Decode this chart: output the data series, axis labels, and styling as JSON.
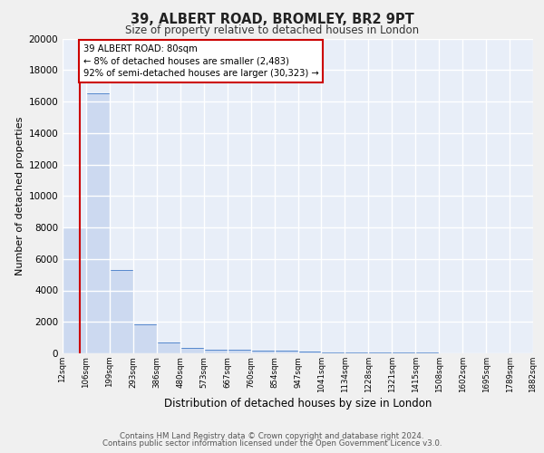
{
  "title1": "39, ALBERT ROAD, BROMLEY, BR2 9PT",
  "title2": "Size of property relative to detached houses in London",
  "xlabel": "Distribution of detached houses by size in London",
  "ylabel": "Number of detached properties",
  "footer1": "Contains HM Land Registry data © Crown copyright and database right 2024.",
  "footer2": "Contains public sector information licensed under the Open Government Licence v3.0.",
  "tick_labels": [
    "12sqm",
    "106sqm",
    "199sqm",
    "293sqm",
    "386sqm",
    "480sqm",
    "573sqm",
    "667sqm",
    "760sqm",
    "854sqm",
    "947sqm",
    "1041sqm",
    "1134sqm",
    "1228sqm",
    "1321sqm",
    "1415sqm",
    "1508sqm",
    "1602sqm",
    "1695sqm",
    "1789sqm",
    "1882sqm"
  ],
  "bar_heights": [
    8000,
    16500,
    5300,
    1850,
    700,
    350,
    250,
    220,
    200,
    180,
    100,
    80,
    60,
    50,
    40,
    30,
    25,
    20,
    15,
    10
  ],
  "bar_color": "#ccd9f0",
  "bar_edge_color": "#5588cc",
  "background_color": "#e8eef8",
  "grid_color": "#ffffff",
  "annotation_text": "39 ALBERT ROAD: 80sqm\n← 8% of detached houses are smaller (2,483)\n92% of semi-detached houses are larger (30,323) →",
  "annotation_box_color": "#ffffff",
  "annotation_box_edge": "#cc0000",
  "ylim": [
    0,
    20000
  ],
  "yticks": [
    0,
    2000,
    4000,
    6000,
    8000,
    10000,
    12000,
    14000,
    16000,
    18000,
    20000
  ],
  "fig_bg": "#f0f0f0"
}
